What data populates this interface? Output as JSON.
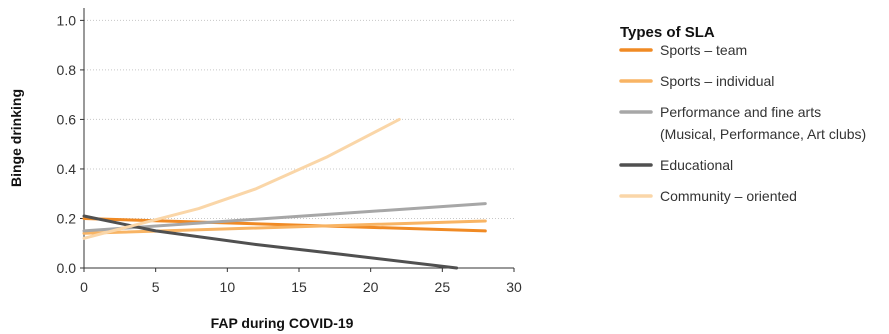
{
  "chart_data": {
    "type": "line",
    "title": "",
    "xlabel": "FAP during COVID-19",
    "ylabel": "Binge drinking",
    "xlim": [
      0,
      30
    ],
    "ylim": [
      0,
      1.05
    ],
    "xticks": [
      0,
      5,
      10,
      15,
      20,
      25,
      30
    ],
    "xtick_labels": [
      "0",
      "5",
      "10",
      "15",
      "20",
      "25",
      "30"
    ],
    "yticks": [
      0,
      0.2,
      0.4,
      0.6,
      0.8,
      1.0
    ],
    "ytick_labels": [
      "0.0",
      "0.2",
      "0.4",
      "0.6",
      "0.8",
      "1.0"
    ],
    "grid": "horizontal dotted",
    "legend": {
      "title": "Types of SLA",
      "placement": "right"
    },
    "series": [
      {
        "name": "Sports – team",
        "label_lines": [
          "Sports – team"
        ],
        "color": "#F08A24",
        "x": [
          0,
          28
        ],
        "y": [
          0.2,
          0.15
        ]
      },
      {
        "name": "Sports – individual",
        "label_lines": [
          "Sports – individual"
        ],
        "color": "#F8B464",
        "x": [
          0,
          28
        ],
        "y": [
          0.14,
          0.19
        ]
      },
      {
        "name": "Performance and fine arts (Musical, Performance, Art clubs)",
        "label_lines": [
          "Performance and fine arts",
          "(Musical, Performance, Art clubs)"
        ],
        "color": "#A7A7A7",
        "x": [
          0,
          28
        ],
        "y": [
          0.15,
          0.26
        ]
      },
      {
        "name": "Educational",
        "label_lines": [
          "Educational"
        ],
        "color": "#505050",
        "x": [
          0,
          5,
          12,
          18,
          26
        ],
        "y": [
          0.21,
          0.15,
          0.095,
          0.055,
          0.0
        ]
      },
      {
        "name": "Community – oriented",
        "label_lines": [
          "Community – oriented"
        ],
        "color": "#FAD6A8",
        "x": [
          0,
          4,
          8,
          12,
          17,
          22
        ],
        "y": [
          0.12,
          0.18,
          0.24,
          0.32,
          0.45,
          0.6
        ]
      }
    ]
  }
}
